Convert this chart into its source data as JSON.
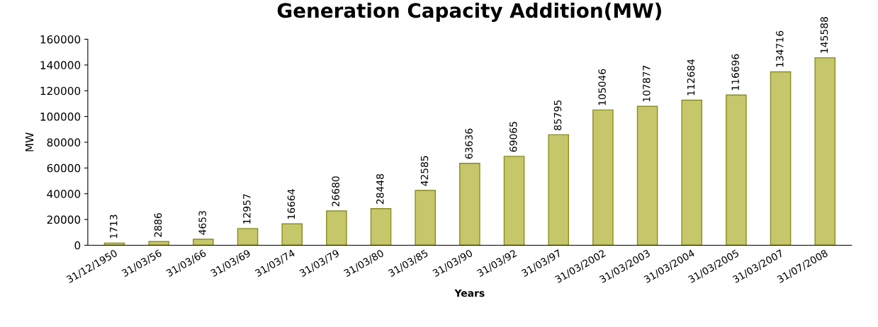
{
  "chart_data": {
    "type": "bar",
    "title": "Generation Capacity Addition(MW)",
    "xlabel": "Years",
    "ylabel": "MW",
    "categories": [
      "31/12/1950",
      "31/03/56",
      "31/03/66",
      "31/03/69",
      "31/03/74",
      "31/03/79",
      "31/03/80",
      "31/03/85",
      "31/03/90",
      "31/03/92",
      "31/03/97",
      "31/03/2002",
      "31/03/2003",
      "31/03/2004",
      "31/03/2005",
      "31/03/2007",
      "31/07/2008"
    ],
    "values": [
      1713,
      2886,
      4653,
      12957,
      16664,
      26680,
      28448,
      42585,
      63636,
      69065,
      85795,
      105046,
      107877,
      112684,
      116696,
      134716,
      145588
    ],
    "color": "#c5c76a",
    "ylim": [
      0,
      160000
    ],
    "yticks": [
      0,
      20000,
      40000,
      60000,
      80000,
      100000,
      120000,
      140000,
      160000
    ],
    "data_labels": true,
    "grid": false,
    "legend": false
  }
}
